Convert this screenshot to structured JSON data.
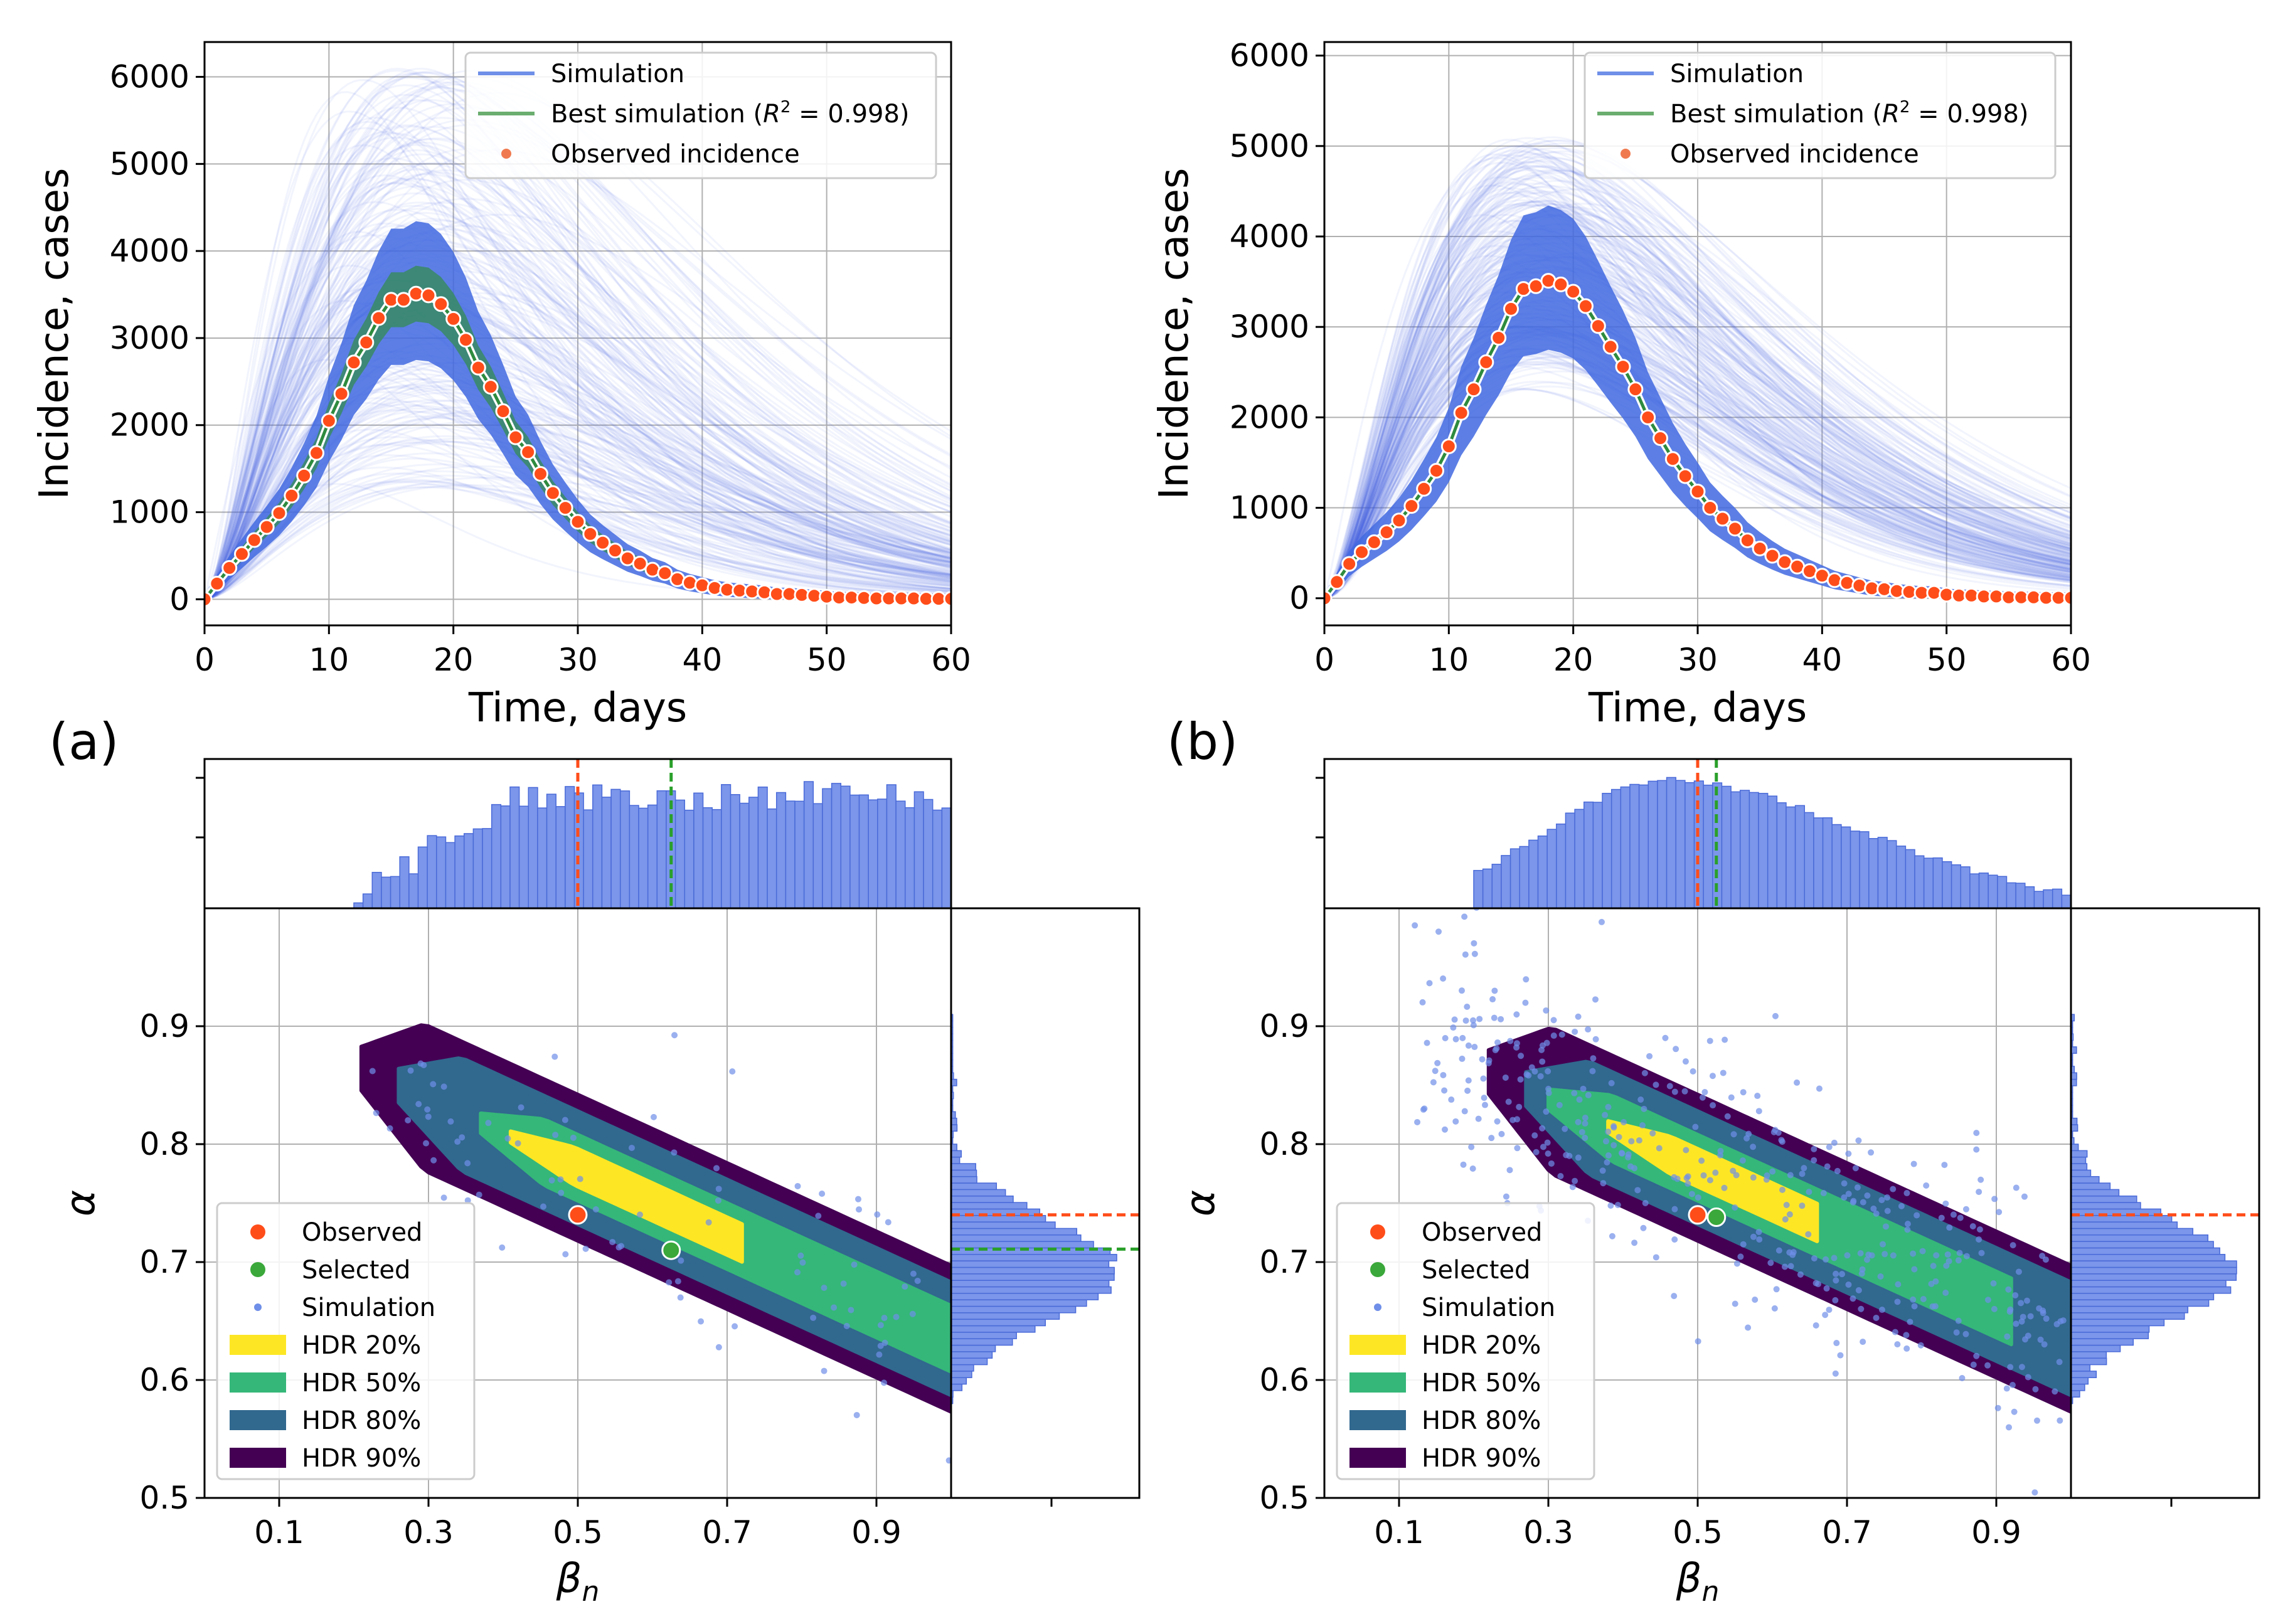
{
  "colors": {
    "sim": "#4169e1",
    "best": "#2e8b3e",
    "observed": "#ff4d1a",
    "selected": "#3aa83a",
    "hdr20": "#fde725",
    "hdr50": "#35b779",
    "hdr80": "#31688e",
    "hdr90": "#440154",
    "hist": "#7b96ea",
    "grid": "#b0b0b0"
  },
  "panels": {
    "a": {
      "label": "(a)",
      "r2": "0.998"
    },
    "b": {
      "label": "(b)",
      "r2": "0.998"
    }
  },
  "chart_data": [
    {
      "id": "a-top",
      "type": "line",
      "xlabel": "Time, days",
      "ylabel": "Incidence, cases",
      "xlim": [
        0,
        60
      ],
      "ylim": [
        -300,
        6400
      ],
      "xticks": [
        0,
        10,
        20,
        30,
        40,
        50,
        60
      ],
      "yticks": [
        0,
        1000,
        2000,
        3000,
        4000,
        5000,
        6000
      ],
      "legend": {
        "position": "top-right",
        "simulation": "Simulation",
        "best_prefix": "Best simulation (",
        "best_r2": "R",
        "best_sup": "2",
        "best_suffix": " = 0.998)",
        "observed": "Observed incidence"
      },
      "observed": {
        "x": [
          0,
          1,
          2,
          3,
          4,
          5,
          6,
          7,
          8,
          9,
          10,
          11,
          12,
          13,
          14,
          15,
          16,
          17,
          18,
          19,
          20,
          21,
          22,
          23,
          24,
          25,
          26,
          27,
          28,
          29,
          30,
          31,
          32,
          33,
          34,
          35,
          36,
          37,
          38,
          39,
          40,
          41,
          42,
          43,
          44,
          45,
          46,
          47,
          48,
          49,
          50,
          51,
          52,
          53,
          54,
          55,
          56,
          57,
          58,
          59,
          60
        ],
        "y": [
          0,
          180,
          360,
          520,
          680,
          830,
          990,
          1190,
          1420,
          1680,
          2050,
          2360,
          2720,
          2950,
          3230,
          3440,
          3440,
          3510,
          3490,
          3390,
          3220,
          2980,
          2660,
          2440,
          2160,
          1860,
          1690,
          1440,
          1220,
          1050,
          890,
          750,
          650,
          560,
          470,
          410,
          340,
          300,
          230,
          190,
          160,
          130,
          110,
          100,
          90,
          80,
          60,
          60,
          50,
          40,
          30,
          20,
          20,
          15,
          10,
          10,
          10,
          10,
          5,
          5,
          5
        ]
      },
      "best": {
        "peak": 3500,
        "peak_day": 17.5
      },
      "band": {
        "scale_min": 0.35,
        "scale_max": 1.75,
        "shift": 2.5
      }
    },
    {
      "id": "b-top",
      "type": "line",
      "xlabel": "Time, days",
      "ylabel": "Incidence, cases",
      "xlim": [
        0,
        60
      ],
      "ylim": [
        -300,
        6150
      ],
      "xticks": [
        0,
        10,
        20,
        30,
        40,
        50,
        60
      ],
      "yticks": [
        0,
        1000,
        2000,
        3000,
        4000,
        5000,
        6000
      ],
      "legend": {
        "position": "top-right",
        "simulation": "Simulation",
        "best_prefix": "Best simulation (",
        "best_r2": "R",
        "best_sup": "2",
        "best_suffix": " = 0.998)",
        "observed": "Observed incidence"
      },
      "observed": {
        "x": [
          0,
          1,
          2,
          3,
          4,
          5,
          6,
          7,
          8,
          9,
          10,
          11,
          12,
          13,
          14,
          15,
          16,
          17,
          18,
          19,
          20,
          21,
          22,
          23,
          24,
          25,
          26,
          27,
          28,
          29,
          30,
          31,
          32,
          33,
          34,
          35,
          36,
          37,
          38,
          39,
          40,
          41,
          42,
          43,
          44,
          45,
          46,
          47,
          48,
          49,
          50,
          51,
          52,
          53,
          54,
          55,
          56,
          57,
          58,
          59,
          60
        ],
        "y": [
          0,
          180,
          380,
          510,
          620,
          730,
          860,
          1020,
          1210,
          1410,
          1680,
          2050,
          2310,
          2610,
          2880,
          3200,
          3420,
          3450,
          3510,
          3470,
          3390,
          3230,
          3010,
          2780,
          2560,
          2310,
          2000,
          1770,
          1540,
          1350,
          1180,
          1000,
          880,
          770,
          640,
          550,
          470,
          400,
          350,
          300,
          250,
          200,
          170,
          140,
          110,
          100,
          80,
          70,
          60,
          60,
          40,
          30,
          30,
          20,
          20,
          10,
          10,
          10,
          5,
          5,
          5
        ]
      },
      "best": {
        "peak": 3520,
        "peak_day": 17.0
      },
      "band": {
        "scale_min": 0.65,
        "scale_max": 1.45,
        "shift": 1.5
      }
    },
    {
      "id": "a-bottom",
      "type": "scatter",
      "xlabel": "β",
      "xlabel_sub": "n",
      "ylabel": "α",
      "xlim": [
        0.0,
        1.0
      ],
      "ylim": [
        0.5,
        1.0
      ],
      "xticks": [
        0.1,
        0.3,
        0.5,
        0.7,
        0.9
      ],
      "yticks": [
        0.5,
        0.6,
        0.7,
        0.8,
        0.9
      ],
      "observed": [
        0.5,
        0.74
      ],
      "selected": [
        0.625,
        0.71
      ],
      "marginal_x": {
        "observed": 0.5,
        "selected": 0.625
      },
      "marginal_y": {
        "observed": 0.74,
        "selected": 0.711
      },
      "legend": {
        "position": "lower-left",
        "observed": "Observed",
        "selected": "Selected",
        "simulation": "Simulation",
        "hdr20": "HDR 20%",
        "hdr50": "HDR 50%",
        "hdr80": "HDR 80%",
        "hdr90": "HDR 90%"
      }
    },
    {
      "id": "b-bottom",
      "type": "scatter",
      "xlabel": "β",
      "xlabel_sub": "n",
      "ylabel": "α",
      "xlim": [
        0.0,
        1.0
      ],
      "ylim": [
        0.5,
        1.0
      ],
      "xticks": [
        0.1,
        0.3,
        0.5,
        0.7,
        0.9
      ],
      "yticks": [
        0.5,
        0.6,
        0.7,
        0.8,
        0.9
      ],
      "observed": [
        0.5,
        0.74
      ],
      "selected": [
        0.525,
        0.738
      ],
      "marginal_x": {
        "observed": 0.5,
        "selected": 0.525
      },
      "marginal_y": {
        "observed": 0.74,
        "selected": 0.74
      },
      "legend": {
        "position": "lower-left",
        "observed": "Observed",
        "selected": "Selected",
        "simulation": "Simulation",
        "hdr20": "HDR 20%",
        "hdr50": "HDR 50%",
        "hdr80": "HDR 80%",
        "hdr90": "HDR 90%"
      }
    }
  ]
}
